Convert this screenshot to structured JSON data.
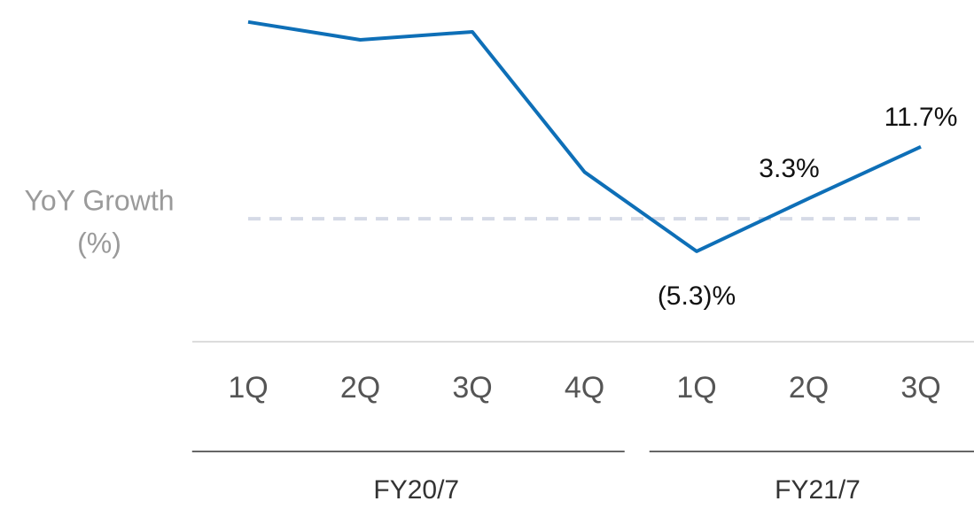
{
  "chart_data": {
    "type": "line",
    "ylabel": [
      "YoY Growth",
      "(%)"
    ],
    "categories": [
      "1Q",
      "2Q",
      "3Q",
      "4Q",
      "1Q",
      "2Q",
      "3Q"
    ],
    "groups": [
      {
        "name": "FY20/7",
        "count": 4
      },
      {
        "name": "FY21/7",
        "count": 3
      }
    ],
    "series": [
      {
        "name": "YoY Growth",
        "color": "#0e6fb7",
        "values": [
          32.0,
          29.1,
          30.4,
          7.6,
          -5.3,
          3.3,
          11.7
        ],
        "value_labels": [
          null,
          null,
          null,
          null,
          "(5.3)%",
          "3.3%",
          "11.7%"
        ]
      }
    ],
    "ylim": [
      -20,
      35
    ],
    "reference_line": 0,
    "reference_color": "#d5dae6",
    "legend": false
  }
}
